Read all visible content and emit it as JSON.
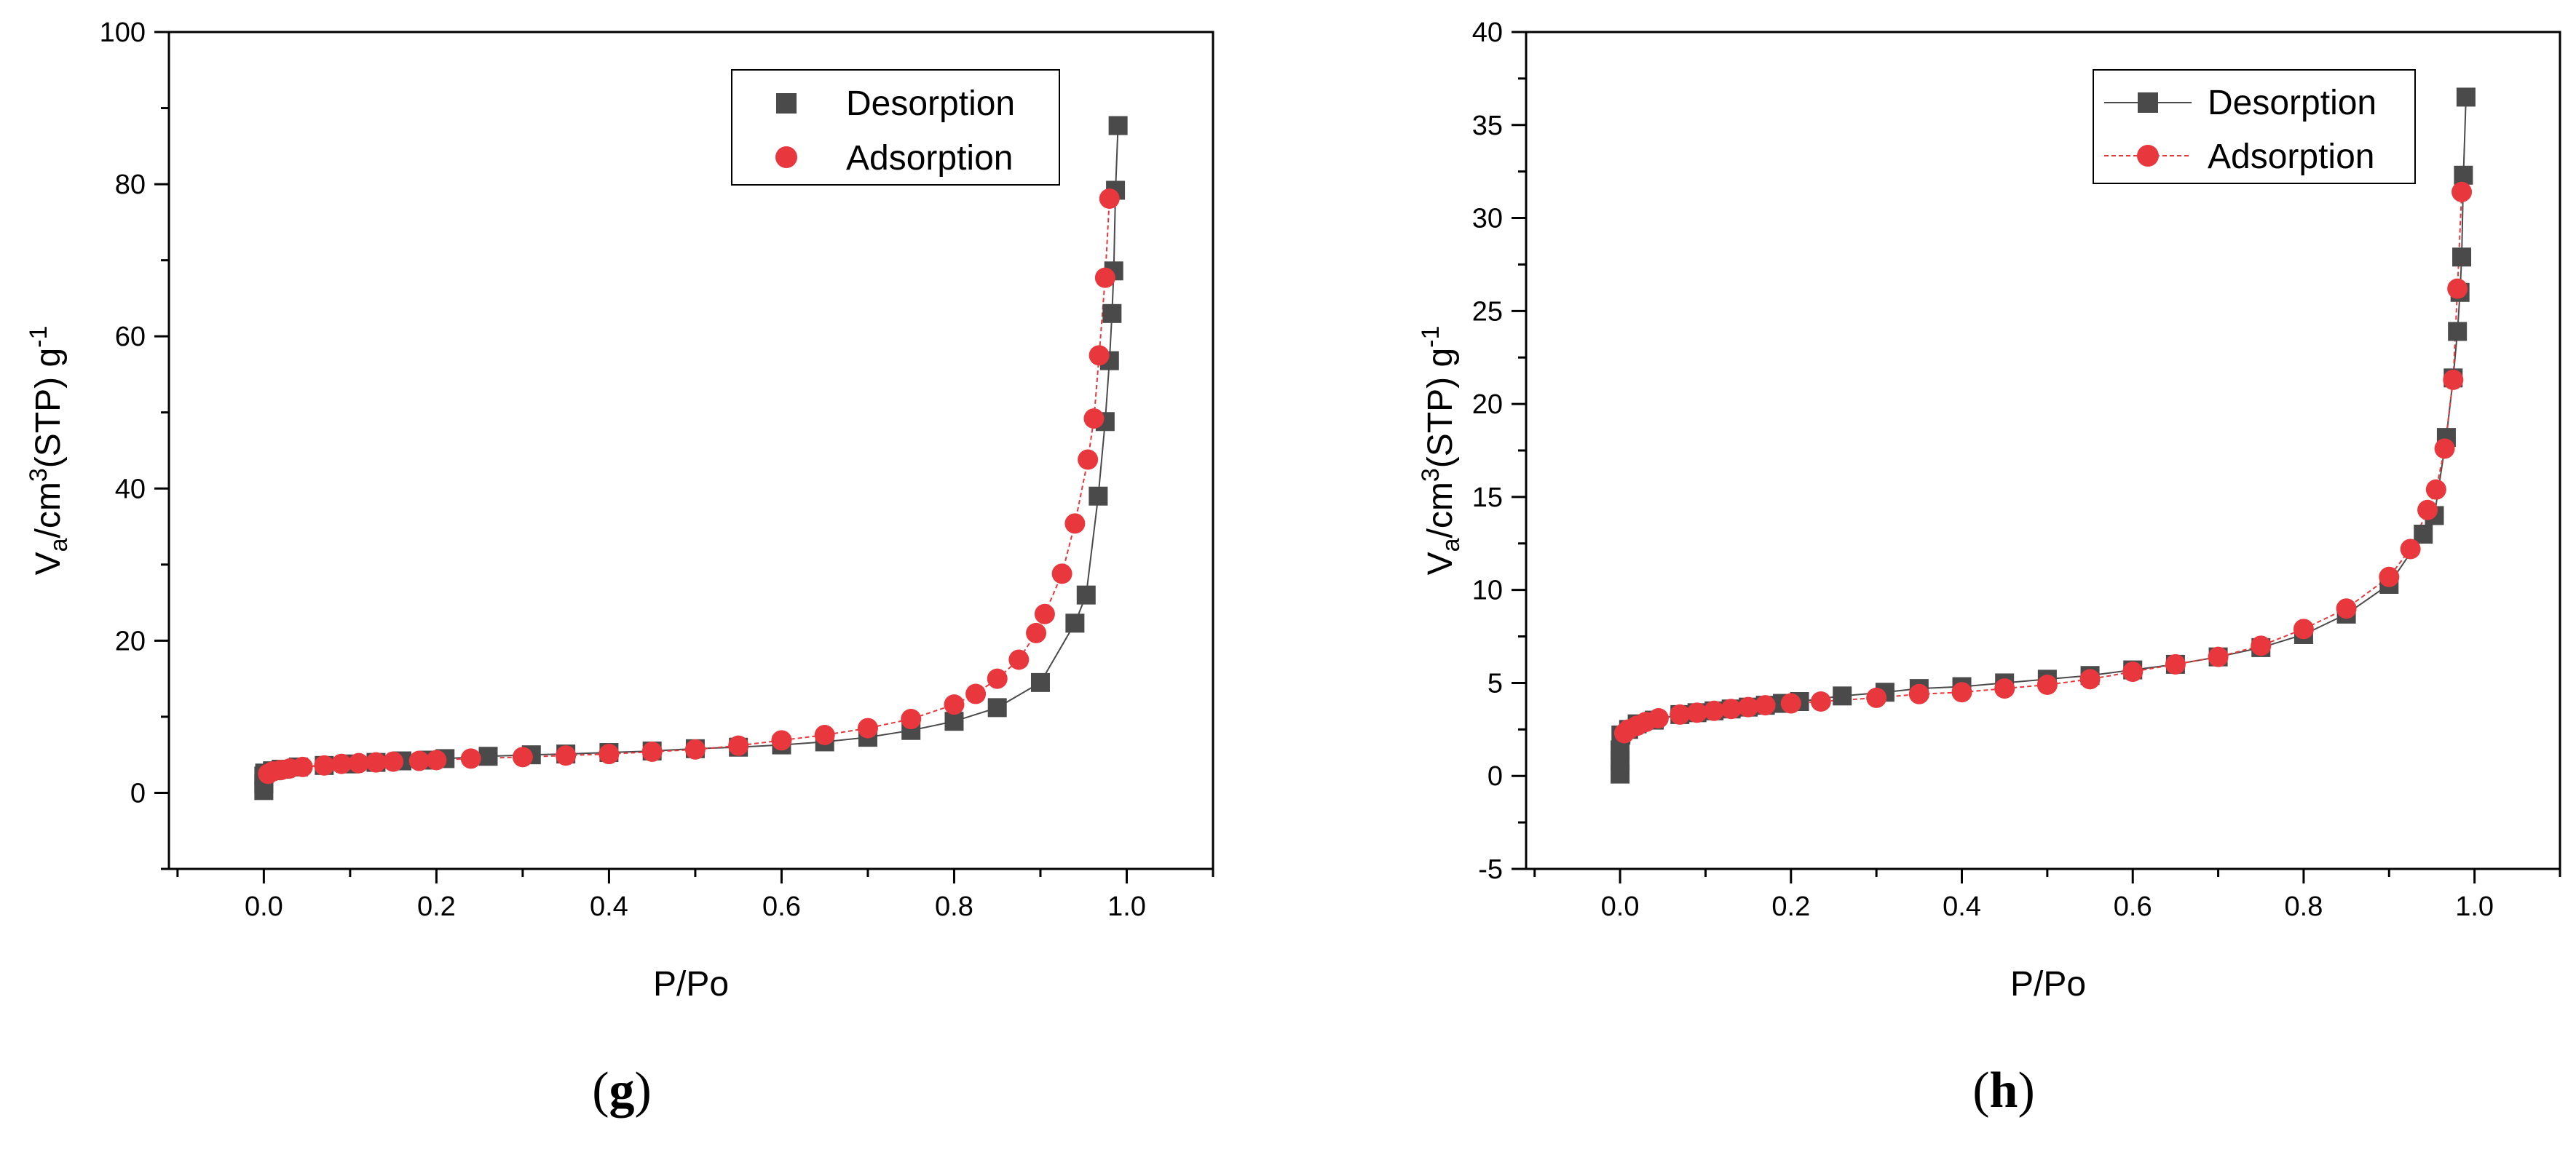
{
  "chart_data": [
    {
      "type": "scatter",
      "panel": "g",
      "xlabel": "P/Po",
      "ylabel": "V_a/cm^3(STP) g^-1",
      "xlim": [
        -0.11,
        1.1
      ],
      "ylim": [
        -10,
        100
      ],
      "xticks": [
        0.0,
        0.2,
        0.4,
        0.6,
        0.8,
        1.0
      ],
      "xtick_labels": [
        "0.0",
        "0.2",
        "0.4",
        "0.6",
        "0.8",
        "1.0"
      ],
      "yticks": [
        0,
        20,
        40,
        60,
        80,
        100
      ],
      "ytick_labels": [
        "0",
        "20",
        "40",
        "60",
        "80",
        "100"
      ],
      "legend_position": "top-right",
      "series": [
        {
          "name": "Desorption",
          "marker": "square",
          "color": "#4a4a4a",
          "x": [
            0.0,
            0.0,
            0.0,
            0.001,
            0.01,
            0.02,
            0.04,
            0.07,
            0.1,
            0.13,
            0.16,
            0.19,
            0.21,
            0.26,
            0.31,
            0.35,
            0.4,
            0.45,
            0.5,
            0.55,
            0.6,
            0.65,
            0.7,
            0.75,
            0.8,
            0.85,
            0.9,
            0.94,
            0.953,
            0.967,
            0.975,
            0.98,
            0.983,
            0.985,
            0.987,
            0.99
          ],
          "y": [
            0.3,
            1.2,
            2.2,
            2.6,
            2.9,
            3.1,
            3.4,
            3.6,
            3.8,
            4.0,
            4.2,
            4.3,
            4.5,
            4.8,
            5.0,
            5.1,
            5.3,
            5.5,
            5.8,
            6.0,
            6.3,
            6.7,
            7.3,
            8.2,
            9.4,
            11.2,
            14.5,
            22.3,
            26.0,
            39.0,
            48.8,
            56.8,
            63.0,
            68.6,
            79.2,
            87.7
          ]
        },
        {
          "name": "Adsorption",
          "marker": "circle",
          "color": "#e8383d",
          "x": [
            0.005,
            0.01,
            0.02,
            0.03,
            0.045,
            0.07,
            0.09,
            0.11,
            0.13,
            0.15,
            0.18,
            0.2,
            0.24,
            0.3,
            0.35,
            0.4,
            0.45,
            0.5,
            0.55,
            0.6,
            0.65,
            0.7,
            0.75,
            0.8,
            0.825,
            0.85,
            0.875,
            0.895,
            0.905,
            0.925,
            0.94,
            0.955,
            0.962,
            0.968,
            0.975,
            0.98
          ],
          "y": [
            2.5,
            2.8,
            3.0,
            3.2,
            3.4,
            3.6,
            3.8,
            3.9,
            4.0,
            4.1,
            4.2,
            4.3,
            4.5,
            4.7,
            4.9,
            5.1,
            5.4,
            5.7,
            6.2,
            6.9,
            7.6,
            8.5,
            9.7,
            11.6,
            13.0,
            15.0,
            17.5,
            21.0,
            23.5,
            28.8,
            35.4,
            43.8,
            49.2,
            57.5,
            67.7,
            78.1
          ]
        }
      ]
    },
    {
      "type": "scatter",
      "panel": "h",
      "xlabel": "P/Po",
      "ylabel": "V_a/cm^3(STP) g^-1",
      "xlim": [
        -0.11,
        1.1
      ],
      "ylim": [
        -5,
        40
      ],
      "xticks": [
        0.0,
        0.2,
        0.4,
        0.6,
        0.8,
        1.0
      ],
      "xtick_labels": [
        "0.0",
        "0.2",
        "0.4",
        "0.6",
        "0.8",
        "1.0"
      ],
      "yticks": [
        -5,
        0,
        5,
        10,
        15,
        20,
        25,
        30,
        35,
        40
      ],
      "ytick_labels": [
        "-5",
        "0",
        "5",
        "10",
        "15",
        "20",
        "25",
        "30",
        "35",
        "40"
      ],
      "legend_position": "top-right",
      "series": [
        {
          "name": "Desorption",
          "marker": "square",
          "color": "#4a4a4a",
          "x": [
            0.0,
            0.0,
            0.0,
            0.001,
            0.01,
            0.02,
            0.04,
            0.07,
            0.09,
            0.11,
            0.13,
            0.15,
            0.17,
            0.19,
            0.21,
            0.26,
            0.31,
            0.35,
            0.4,
            0.45,
            0.5,
            0.55,
            0.6,
            0.65,
            0.7,
            0.75,
            0.8,
            0.85,
            0.9,
            0.94,
            0.953,
            0.967,
            0.975,
            0.98,
            0.983,
            0.985,
            0.987,
            0.99
          ],
          "y": [
            0.1,
            0.8,
            1.4,
            2.2,
            2.5,
            2.8,
            3.0,
            3.3,
            3.4,
            3.5,
            3.6,
            3.7,
            3.8,
            3.9,
            4.0,
            4.3,
            4.5,
            4.7,
            4.8,
            5.0,
            5.2,
            5.4,
            5.7,
            6.0,
            6.4,
            6.9,
            7.6,
            8.7,
            10.3,
            13.0,
            14.0,
            18.2,
            21.4,
            23.9,
            26.0,
            27.9,
            32.3,
            36.5
          ]
        },
        {
          "name": "Adsorption",
          "marker": "circle",
          "color": "#e8383d",
          "x": [
            0.005,
            0.01,
            0.02,
            0.03,
            0.045,
            0.07,
            0.09,
            0.11,
            0.13,
            0.15,
            0.17,
            0.2,
            0.235,
            0.3,
            0.35,
            0.4,
            0.45,
            0.5,
            0.55,
            0.6,
            0.65,
            0.7,
            0.75,
            0.8,
            0.85,
            0.9,
            0.925,
            0.945,
            0.955,
            0.965,
            0.975,
            0.98,
            0.985
          ],
          "y": [
            2.3,
            2.5,
            2.7,
            2.9,
            3.1,
            3.3,
            3.4,
            3.5,
            3.6,
            3.7,
            3.8,
            3.9,
            4.0,
            4.2,
            4.4,
            4.5,
            4.7,
            4.9,
            5.2,
            5.6,
            6.0,
            6.4,
            7.0,
            7.9,
            9.0,
            10.7,
            12.2,
            14.3,
            15.4,
            17.6,
            21.3,
            26.2,
            31.4
          ]
        }
      ]
    }
  ]
}
